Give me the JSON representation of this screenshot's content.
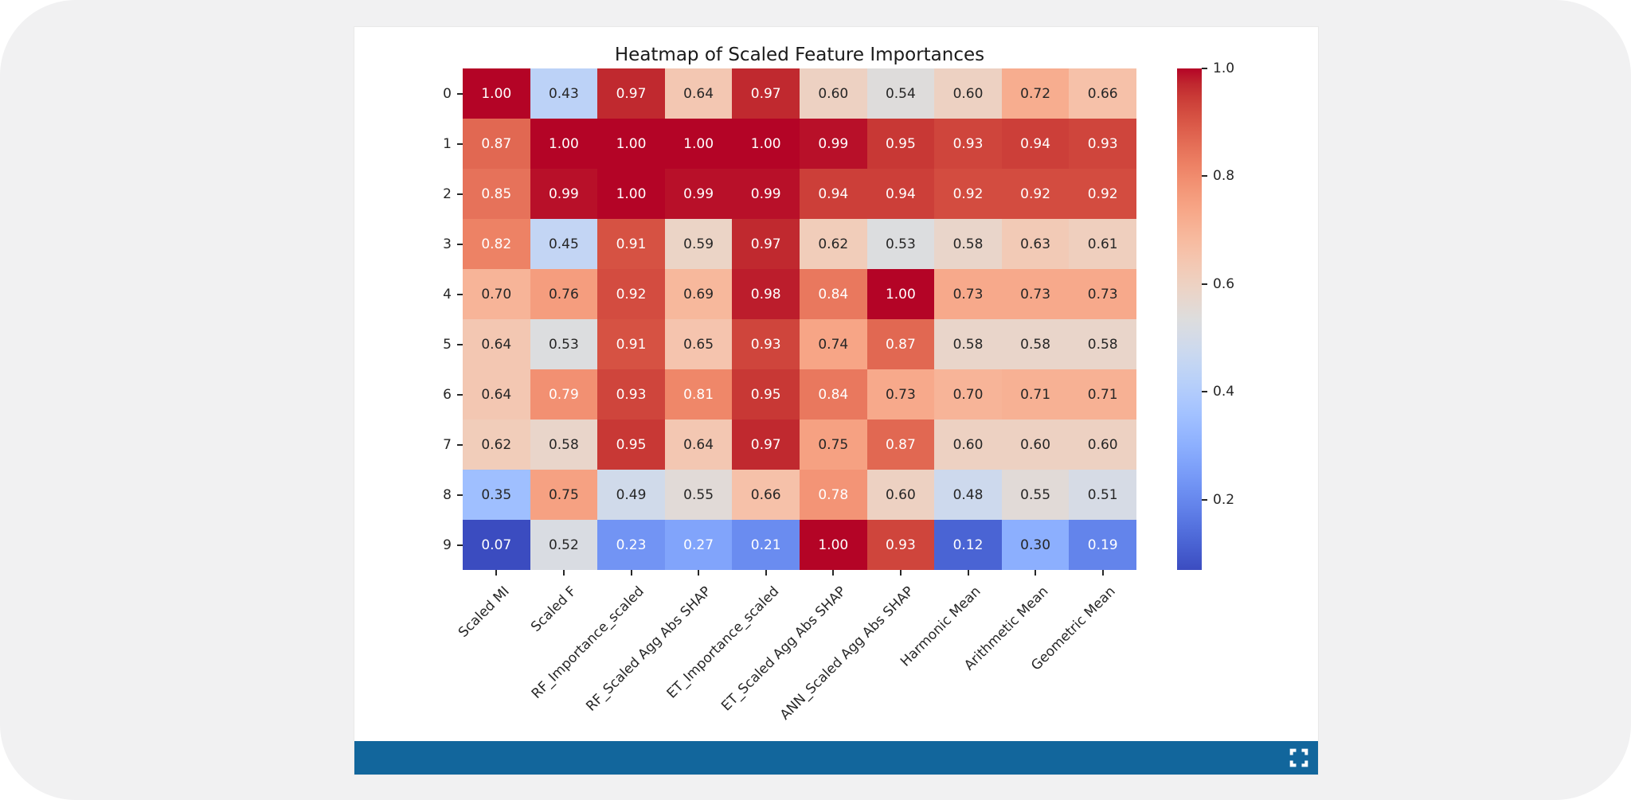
{
  "window": {
    "background_color": "#f1f1f2",
    "card_background": "#ffffff"
  },
  "chart_data": {
    "type": "heatmap",
    "title": "Heatmap of Scaled Feature Importances",
    "row_labels": [
      "0",
      "1",
      "2",
      "3",
      "4",
      "5",
      "6",
      "7",
      "8",
      "9"
    ],
    "column_labels": [
      "Scaled MI",
      "Scaled F",
      "RF_Importance_scaled",
      "RF_Scaled Agg Abs SHAP",
      "ET_Importance_scaled",
      "ET_Scaled Agg Abs SHAP",
      "ANN_Scaled Agg Abs SHAP",
      "Harmonic Mean",
      "Arithmetic Mean",
      "Geometric Mean"
    ],
    "matrix": [
      [
        1.0,
        0.43,
        0.97,
        0.64,
        0.97,
        0.6,
        0.54,
        0.6,
        0.72,
        0.66
      ],
      [
        0.87,
        1.0,
        1.0,
        1.0,
        1.0,
        0.99,
        0.95,
        0.93,
        0.94,
        0.93
      ],
      [
        0.85,
        0.99,
        1.0,
        0.99,
        0.99,
        0.94,
        0.94,
        0.92,
        0.92,
        0.92
      ],
      [
        0.82,
        0.45,
        0.91,
        0.59,
        0.97,
        0.62,
        0.53,
        0.58,
        0.63,
        0.61
      ],
      [
        0.7,
        0.76,
        0.92,
        0.69,
        0.98,
        0.84,
        1.0,
        0.73,
        0.73,
        0.73
      ],
      [
        0.64,
        0.53,
        0.91,
        0.65,
        0.93,
        0.74,
        0.87,
        0.58,
        0.58,
        0.58
      ],
      [
        0.64,
        0.79,
        0.93,
        0.81,
        0.95,
        0.84,
        0.73,
        0.7,
        0.71,
        0.71
      ],
      [
        0.62,
        0.58,
        0.95,
        0.64,
        0.97,
        0.75,
        0.87,
        0.6,
        0.6,
        0.6
      ],
      [
        0.35,
        0.75,
        0.49,
        0.55,
        0.66,
        0.78,
        0.6,
        0.48,
        0.55,
        0.51
      ],
      [
        0.07,
        0.52,
        0.23,
        0.27,
        0.21,
        1.0,
        0.93,
        0.12,
        0.3,
        0.19
      ]
    ],
    "annot_format": ".2f",
    "colormap": "coolwarm",
    "vmin": 0.07,
    "vmax": 1.0,
    "legend_position": "colorbar-right",
    "colorbar": {
      "tick_values": [
        1.0,
        0.8,
        0.6,
        0.4,
        0.2
      ],
      "tick_labels": [
        "1.0",
        "0.8",
        "0.6",
        "0.4",
        "0.2"
      ]
    },
    "annotation_text_dark": "#262626",
    "annotation_text_light": "#ffffff"
  },
  "footer": {
    "bar_color": "#12669c",
    "icon": "fullscreen-icon"
  }
}
